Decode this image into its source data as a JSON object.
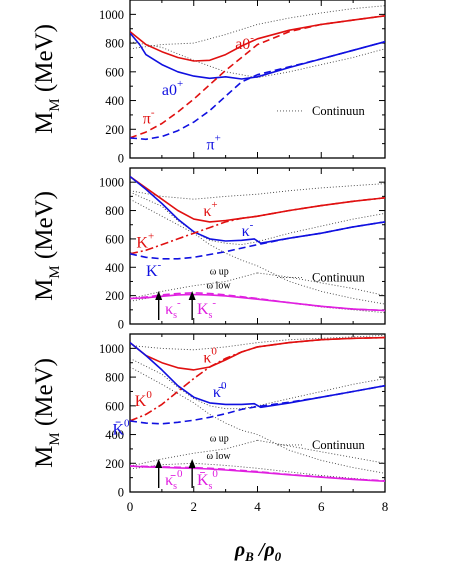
{
  "figure": {
    "xlabel": "ρB /ρ0",
    "x_ticks": [
      "0",
      "2",
      "4",
      "6",
      "8"
    ],
    "xlim": [
      0,
      8
    ]
  },
  "chart_data": [
    {
      "type": "line",
      "ylabel": "M_M (MeV)",
      "ylim": [
        0,
        1100
      ],
      "y_ticks": [
        "0",
        "200",
        "400",
        "600",
        "800",
        "1000"
      ],
      "legend": "Continuun",
      "legend_position": "middle-right",
      "series": [
        {
          "name": "a0-",
          "color": "#e01010",
          "style": "solid",
          "x": [
            0,
            0.5,
            1,
            1.5,
            2,
            2.5,
            3,
            3.5,
            4,
            5,
            6,
            7,
            8
          ],
          "y": [
            880,
            790,
            740,
            700,
            675,
            680,
            720,
            780,
            830,
            890,
            930,
            960,
            990
          ]
        },
        {
          "name": "a0+",
          "color": "#1010e0",
          "style": "solid",
          "x": [
            0,
            0.3,
            0.5,
            1,
            1.5,
            2,
            2.5,
            3,
            3.5,
            4,
            5,
            6,
            7,
            8
          ],
          "y": [
            870,
            790,
            720,
            650,
            600,
            570,
            555,
            565,
            550,
            565,
            630,
            690,
            750,
            810
          ]
        },
        {
          "name": "π-",
          "color": "#e01010",
          "style": "dashed",
          "x": [
            0,
            0.5,
            1,
            1.5,
            2,
            2.5,
            3,
            3.5,
            4,
            5,
            6,
            7,
            8
          ],
          "y": [
            140,
            180,
            240,
            320,
            410,
            510,
            610,
            700,
            790,
            880,
            930,
            960,
            990
          ]
        },
        {
          "name": "π+",
          "color": "#1010e0",
          "style": "dashed",
          "x": [
            0,
            0.5,
            1,
            1.5,
            2,
            2.5,
            3,
            3.5,
            4,
            5,
            6,
            7,
            8
          ],
          "y": [
            140,
            130,
            150,
            190,
            250,
            330,
            430,
            530,
            580,
            635,
            690,
            750,
            810
          ]
        }
      ],
      "labels": [
        {
          "text": "a0",
          "sup": "-",
          "color": "#e01010",
          "x": 3.3,
          "y": 760
        },
        {
          "text": "a0",
          "sup": "+",
          "color": "#1010e0",
          "x": 1.0,
          "y": 440
        },
        {
          "text": "π",
          "sup": "-",
          "color": "#e01010",
          "x": 0.4,
          "y": 240
        },
        {
          "text": "π",
          "sup": "+",
          "color": "#1010e0",
          "x": 2.4,
          "y": 60
        }
      ]
    },
    {
      "type": "line",
      "ylabel": "M_M (MeV)",
      "ylim": [
        0,
        1100
      ],
      "y_ticks": [
        "0",
        "200",
        "400",
        "600",
        "800",
        "1000"
      ],
      "legend": "Continuun",
      "legend_position": "middle-right",
      "series": [
        {
          "name": "κ+",
          "color": "#e01010",
          "style": "solid",
          "x": [
            0,
            0.5,
            1,
            1.5,
            2,
            2.5,
            3,
            3.5,
            4,
            5,
            6,
            7,
            8
          ],
          "y": [
            1040,
            960,
            880,
            800,
            740,
            720,
            730,
            745,
            760,
            800,
            835,
            865,
            890
          ]
        },
        {
          "name": "κ-",
          "color": "#1010e0",
          "style": "solid",
          "x": [
            0,
            0.5,
            1,
            1.5,
            2,
            2.5,
            3,
            3.5,
            3.9,
            4.1,
            5,
            6,
            7,
            8
          ],
          "y": [
            1040,
            950,
            850,
            740,
            650,
            600,
            585,
            590,
            600,
            570,
            605,
            640,
            685,
            720
          ]
        },
        {
          "name": "K+",
          "color": "#e01010",
          "style": "dashdot",
          "x": [
            0,
            0.5,
            1,
            1.5,
            2,
            2.5,
            3,
            3.5,
            4,
            5,
            6,
            7,
            8
          ],
          "y": [
            495,
            520,
            560,
            600,
            640,
            680,
            720,
            745,
            760,
            800,
            835,
            865,
            890
          ]
        },
        {
          "name": "K-",
          "color": "#1010e0",
          "style": "dashed",
          "x": [
            0,
            0.5,
            1,
            1.5,
            2,
            2.5,
            3,
            3.5,
            4,
            5,
            6,
            7,
            8
          ],
          "y": [
            495,
            470,
            460,
            460,
            470,
            490,
            510,
            535,
            560,
            605,
            640,
            685,
            720
          ]
        },
        {
          "name": "Ks+",
          "color": "#e020e0",
          "style": "dashed",
          "x": [
            0,
            0.5,
            1,
            1.5,
            2,
            2.5,
            3,
            4,
            5,
            6,
            7,
            8
          ],
          "y": [
            180,
            190,
            205,
            215,
            220,
            215,
            205,
            180,
            150,
            125,
            105,
            95
          ]
        },
        {
          "name": "Ks-",
          "color": "#e020e0",
          "style": "solid",
          "x": [
            0,
            0.5,
            1,
            1.5,
            2,
            2.5,
            3,
            4,
            5,
            6,
            7,
            8
          ],
          "y": [
            180,
            185,
            195,
            205,
            208,
            205,
            198,
            175,
            150,
            125,
            105,
            95
          ]
        }
      ],
      "labels": [
        {
          "text": "κ",
          "sup": "+",
          "color": "#e01010",
          "x": 2.3,
          "y": 760
        },
        {
          "text": "κ",
          "sup": "-",
          "color": "#1010e0",
          "x": 3.5,
          "y": 620
        },
        {
          "text": "K",
          "sup": "+",
          "color": "#e01010",
          "x": 0.2,
          "y": 540
        },
        {
          "text": "K",
          "sup": "-",
          "color": "#1010e0",
          "x": 0.5,
          "y": 340
        },
        {
          "text": "ω up",
          "color": "#000000",
          "x": 2.5,
          "y": 350
        },
        {
          "text": "ω low",
          "color": "#000000",
          "x": 2.4,
          "y": 250
        },
        {
          "text": "κ",
          "sup": "-",
          "sub": "s",
          "color": "#e020e0",
          "x": 1.1,
          "y": 70
        },
        {
          "text": "K",
          "sup": "-",
          "sub": "s",
          "color": "#e020e0",
          "x": 2.1,
          "y": 70
        }
      ],
      "arrows": [
        {
          "x": 0.9
        },
        {
          "x": 1.95
        }
      ]
    },
    {
      "type": "line",
      "ylabel": "M_M (MeV)",
      "ylim": [
        0,
        1100
      ],
      "y_ticks": [
        "0",
        "200",
        "400",
        "600",
        "800",
        "1000"
      ],
      "legend": "Continuun",
      "legend_position": "middle-right",
      "series": [
        {
          "name": "κ0",
          "color": "#e01010",
          "style": "solid",
          "x": [
            0,
            0.5,
            1,
            1.5,
            2,
            2.5,
            3,
            3.5,
            4,
            5,
            6,
            7,
            8
          ],
          "y": [
            1040,
            950,
            900,
            865,
            850,
            870,
            920,
            975,
            1010,
            1040,
            1060,
            1070,
            1075
          ]
        },
        {
          "name": "κ̄0",
          "color": "#1010e0",
          "style": "solid",
          "x": [
            0,
            0.5,
            1,
            1.5,
            2,
            2.5,
            3,
            3.5,
            3.9,
            4.1,
            5,
            6,
            7,
            8
          ],
          "y": [
            1040,
            950,
            850,
            740,
            660,
            620,
            610,
            610,
            615,
            590,
            620,
            660,
            700,
            740
          ]
        },
        {
          "name": "K0",
          "color": "#e01010",
          "style": "dashdot",
          "x": [
            0,
            0.5,
            1,
            1.5,
            2,
            2.5,
            3,
            3.5,
            4,
            5,
            6,
            7,
            8
          ],
          "y": [
            495,
            540,
            610,
            700,
            790,
            870,
            930,
            975,
            1010,
            1040,
            1060,
            1070,
            1075
          ]
        },
        {
          "name": "K̄0",
          "color": "#1010e0",
          "style": "dashed",
          "x": [
            0,
            0.5,
            1,
            1.5,
            2,
            2.5,
            3,
            3.5,
            4,
            5,
            6,
            7,
            8
          ],
          "y": [
            495,
            480,
            475,
            485,
            500,
            520,
            545,
            575,
            595,
            625,
            660,
            700,
            740
          ]
        },
        {
          "name": "Ks0",
          "color": "#e020e0",
          "style": "dashed",
          "x": [
            0,
            0.5,
            1,
            1.5,
            2,
            2.5,
            3,
            4,
            5,
            6,
            7,
            8
          ],
          "y": [
            180,
            178,
            175,
            172,
            170,
            165,
            158,
            142,
            122,
            105,
            90,
            78
          ]
        },
        {
          "name": "K̄s0",
          "color": "#e020e0",
          "style": "solid",
          "x": [
            0,
            0.5,
            1,
            1.5,
            2,
            2.5,
            3,
            4,
            5,
            6,
            7,
            8
          ],
          "y": [
            180,
            175,
            172,
            168,
            165,
            160,
            153,
            138,
            120,
            103,
            88,
            75
          ]
        }
      ],
      "labels": [
        {
          "text": "κ",
          "sup": "0",
          "color": "#e01010",
          "x": 2.3,
          "y": 900
        },
        {
          "text": "κ̄",
          "sup": "0",
          "color": "#1010e0",
          "x": 2.6,
          "y": 660
        },
        {
          "text": "K",
          "sup": "0",
          "color": "#e01010",
          "x": 0.15,
          "y": 600
        },
        {
          "text": "K̄",
          "sup": "0",
          "color": "#1010e0",
          "x": -0.55,
          "y": 400
        },
        {
          "text": "ω up",
          "color": "#000000",
          "x": 2.5,
          "y": 350
        },
        {
          "text": "ω low",
          "color": "#000000",
          "x": 2.4,
          "y": 230
        },
        {
          "text": "κ̄",
          "sup": "0",
          "sub": "s",
          "color": "#e020e0",
          "x": 1.1,
          "y": 50
        },
        {
          "text": "K̄",
          "sup": "0",
          "sub": "s",
          "color": "#e020e0",
          "x": 2.1,
          "y": 50
        }
      ],
      "arrows": [
        {
          "x": 0.9
        },
        {
          "x": 1.95
        }
      ]
    }
  ]
}
